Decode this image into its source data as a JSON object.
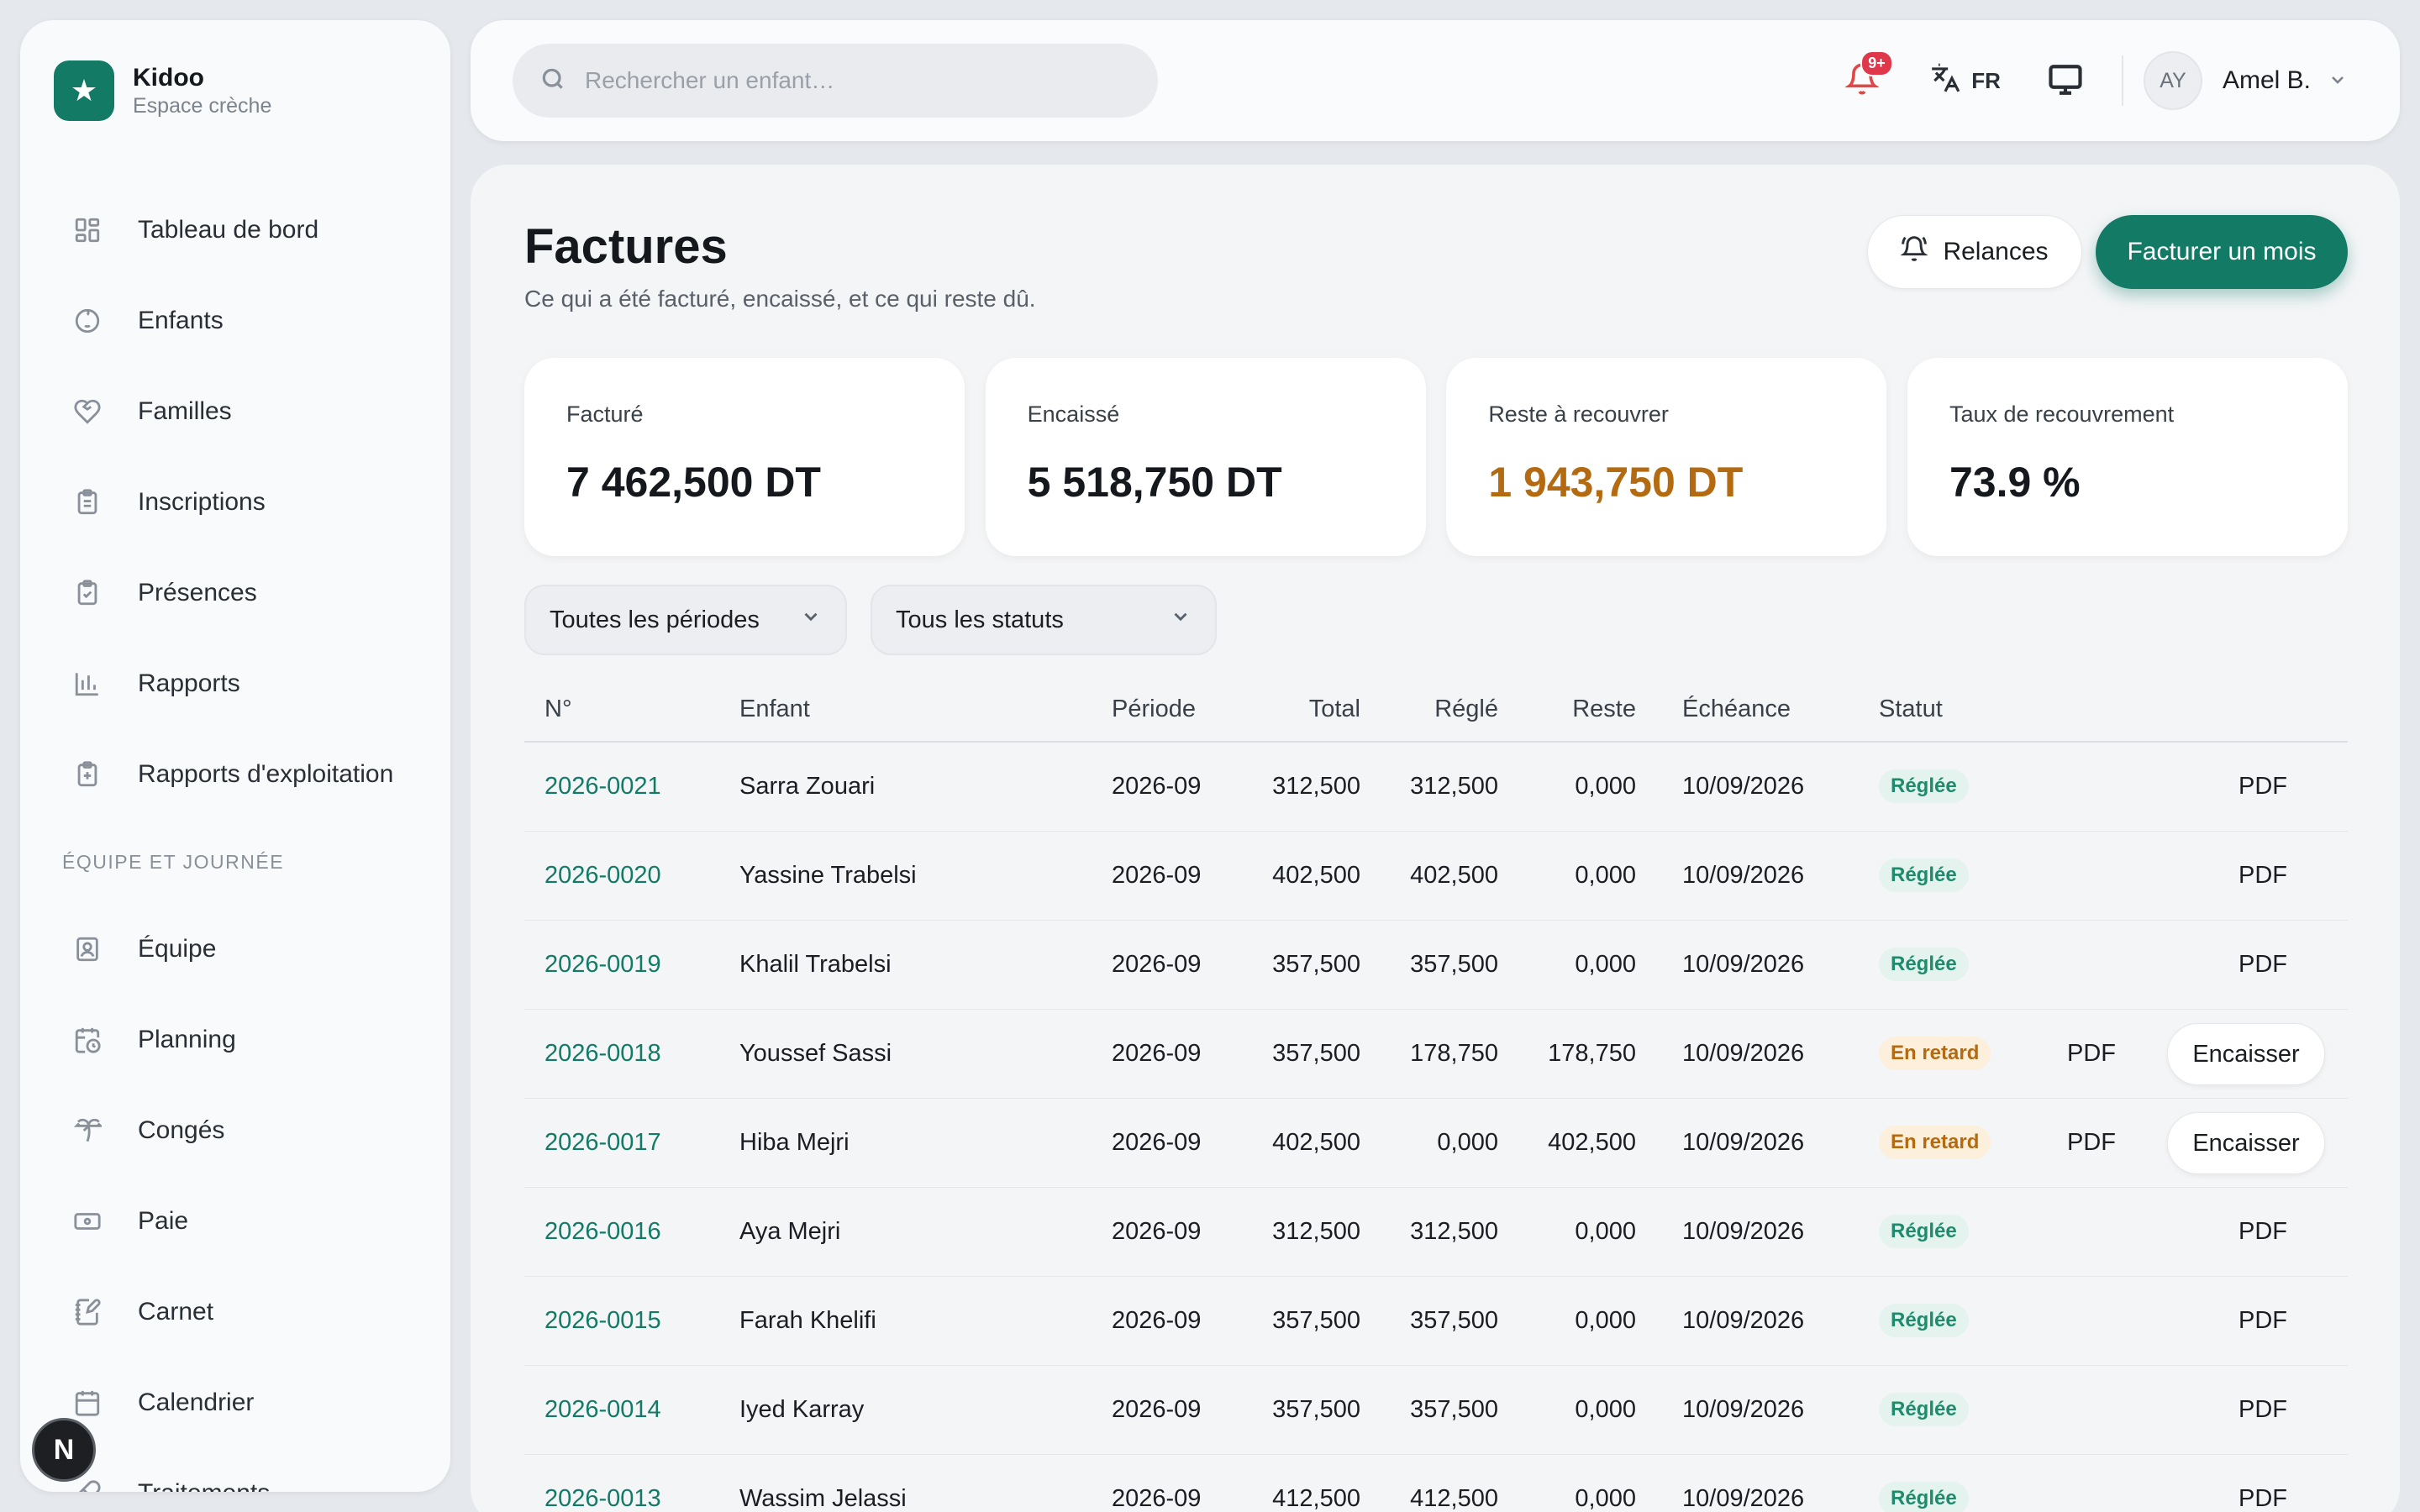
{
  "brand": {
    "name": "Kidoo",
    "subtitle": "Espace crèche"
  },
  "sidebar": {
    "items": [
      {
        "label": "Tableau de bord",
        "icon": "grid-icon"
      },
      {
        "label": "Enfants",
        "icon": "baby-icon"
      },
      {
        "label": "Familles",
        "icon": "heart-hand-icon"
      },
      {
        "label": "Inscriptions",
        "icon": "clipboard-list-icon"
      },
      {
        "label": "Présences",
        "icon": "clipboard-check-icon"
      },
      {
        "label": "Rapports",
        "icon": "bar-chart-icon"
      },
      {
        "label": "Rapports d'exploitation",
        "icon": "clipboard-plus-icon"
      }
    ],
    "section_title": "ÉQUIPE ET JOURNÉE",
    "team_items": [
      {
        "label": "Équipe",
        "icon": "id-badge-icon"
      },
      {
        "label": "Planning",
        "icon": "calendar-clock-icon"
      },
      {
        "label": "Congés",
        "icon": "palm-tree-icon"
      },
      {
        "label": "Paie",
        "icon": "banknote-icon"
      },
      {
        "label": "Carnet",
        "icon": "notebook-pen-icon"
      },
      {
        "label": "Calendrier",
        "icon": "calendar-icon"
      },
      {
        "label": "Traitements",
        "icon": "pill-icon"
      }
    ],
    "fab_label": "N"
  },
  "topbar": {
    "search_placeholder": "Rechercher un enfant…",
    "notifications_badge": "9+",
    "language": "FR",
    "user": {
      "initials": "AY",
      "name": "Amel B."
    }
  },
  "page": {
    "title": "Factures",
    "subtitle": "Ce qui a été facturé, encaissé, et ce qui reste dû.",
    "relances_label": "Relances",
    "primary_label": "Facturer un mois"
  },
  "stats": [
    {
      "label": "Facturé",
      "value": "7 462,500 DT"
    },
    {
      "label": "Encaissé",
      "value": "5 518,750 DT"
    },
    {
      "label": "Reste à recouvrer",
      "value": "1 943,750 DT"
    },
    {
      "label": "Taux de recouvrement",
      "value": "73.9 %"
    }
  ],
  "filters": {
    "period": "Toutes les périodes",
    "status": "Tous les statuts"
  },
  "table": {
    "headers": {
      "number": "N°",
      "child": "Enfant",
      "period": "Période",
      "total": "Total",
      "paid": "Réglé",
      "remaining": "Reste",
      "due": "Échéance",
      "status": "Statut"
    },
    "pdf_label": "PDF",
    "collect_label": "Encaisser",
    "rows": [
      {
        "number": "2026-0021",
        "child": "Sarra Zouari",
        "period": "2026-09",
        "total": "312,500",
        "paid": "312,500",
        "remaining": "0,000",
        "due": "10/09/2026",
        "status": "Réglée",
        "late": false
      },
      {
        "number": "2026-0020",
        "child": "Yassine Trabelsi",
        "period": "2026-09",
        "total": "402,500",
        "paid": "402,500",
        "remaining": "0,000",
        "due": "10/09/2026",
        "status": "Réglée",
        "late": false
      },
      {
        "number": "2026-0019",
        "child": "Khalil Trabelsi",
        "period": "2026-09",
        "total": "357,500",
        "paid": "357,500",
        "remaining": "0,000",
        "due": "10/09/2026",
        "status": "Réglée",
        "late": false
      },
      {
        "number": "2026-0018",
        "child": "Youssef Sassi",
        "period": "2026-09",
        "total": "357,500",
        "paid": "178,750",
        "remaining": "178,750",
        "due": "10/09/2026",
        "status": "En retard",
        "late": true
      },
      {
        "number": "2026-0017",
        "child": "Hiba Mejri",
        "period": "2026-09",
        "total": "402,500",
        "paid": "0,000",
        "remaining": "402,500",
        "due": "10/09/2026",
        "status": "En retard",
        "late": true
      },
      {
        "number": "2026-0016",
        "child": "Aya Mejri",
        "period": "2026-09",
        "total": "312,500",
        "paid": "312,500",
        "remaining": "0,000",
        "due": "10/09/2026",
        "status": "Réglée",
        "late": false
      },
      {
        "number": "2026-0015",
        "child": "Farah Khelifi",
        "period": "2026-09",
        "total": "357,500",
        "paid": "357,500",
        "remaining": "0,000",
        "due": "10/09/2026",
        "status": "Réglée",
        "late": false
      },
      {
        "number": "2026-0014",
        "child": "Iyed Karray",
        "period": "2026-09",
        "total": "357,500",
        "paid": "357,500",
        "remaining": "0,000",
        "due": "10/09/2026",
        "status": "Réglée",
        "late": false
      },
      {
        "number": "2026-0013",
        "child": "Wassim Jelassi",
        "period": "2026-09",
        "total": "412,500",
        "paid": "412,500",
        "remaining": "0,000",
        "due": "10/09/2026",
        "status": "Réglée",
        "late": false
      }
    ]
  }
}
